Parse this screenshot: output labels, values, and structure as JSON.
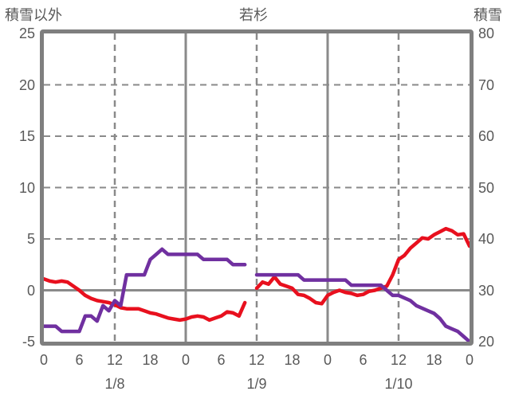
{
  "header": {
    "left_axis_title": "積雪以外",
    "chart_title": "若杉",
    "right_axis_title": "積雪"
  },
  "colors": {
    "axis_gray": "#7f7f7f",
    "grid_gray": "#8a8a8a",
    "text_gray": "#595959",
    "red_series": "#e8101e",
    "purple_series": "#7030a0"
  },
  "chart_data": {
    "type": "line",
    "title": "若杉",
    "x_axis": {
      "unit": "hour (0:00 1/8 — 0:00 1/11)",
      "min_hour": 0,
      "max_hour": 72,
      "tick_hours": [
        0,
        6,
        12,
        18,
        24,
        30,
        36,
        42,
        48,
        54,
        60,
        66,
        72
      ],
      "tick_labels": [
        "0",
        "6",
        "12",
        "18",
        "0",
        "6",
        "12",
        "18",
        "0",
        "6",
        "12",
        "18",
        "0"
      ],
      "day_labels": [
        {
          "text": "1/8",
          "hour": 12
        },
        {
          "text": "1/9",
          "hour": 36
        },
        {
          "text": "1/10",
          "hour": 60
        }
      ]
    },
    "left_axis": {
      "title": "積雪以外",
      "min": -5,
      "max": 25,
      "ticks": [
        "25",
        "20",
        "15",
        "10",
        "5",
        "0",
        "-5"
      ],
      "tick_values": [
        25,
        20,
        15,
        10,
        5,
        0,
        -5
      ]
    },
    "right_axis": {
      "title": "積雪",
      "min": 20,
      "max": 80,
      "ticks": [
        "80",
        "70",
        "60",
        "50",
        "40",
        "30",
        "20"
      ],
      "tick_values": [
        80,
        70,
        60,
        50,
        40,
        30,
        20
      ]
    },
    "gridlines": {
      "horizontal_dashed_left_values": [
        20,
        15,
        10,
        5
      ],
      "horizontal_solid_left_values": [
        0
      ],
      "vertical_dashed_hours": [
        12,
        36,
        60
      ],
      "vertical_solid_hours": [
        24,
        48
      ]
    },
    "series": [
      {
        "name": "sekisetsu-igai-red-line",
        "label": "積雪以外",
        "axis": "left",
        "color": "#e8101e",
        "start_hour": 0,
        "step_hours": 1,
        "values": [
          1.1,
          0.9,
          0.8,
          0.9,
          0.8,
          0.4,
          0.0,
          -0.5,
          -0.8,
          -1.0,
          -1.1,
          -1.2,
          -1.4,
          -1.7,
          -1.8,
          -1.8,
          -1.8,
          -2.0,
          -2.2,
          -2.3,
          -2.5,
          -2.7,
          -2.8,
          -2.9,
          -2.8,
          -2.6,
          -2.5,
          -2.6,
          -2.9,
          -2.7,
          -2.5,
          -2.1,
          -2.2,
          -2.5,
          -1.2,
          null,
          0.2,
          0.8,
          0.6,
          1.3,
          0.6,
          0.4,
          0.2,
          -0.4,
          -0.5,
          -0.8,
          -1.2,
          -1.3,
          -0.5,
          -0.2,
          0.0,
          -0.2,
          -0.3,
          -0.5,
          -0.4,
          -0.1,
          0.0,
          0.2,
          0.4,
          1.5,
          3.0,
          3.4,
          4.1,
          4.6,
          5.1,
          5.0,
          5.4,
          5.7,
          6.0,
          5.8,
          5.4,
          5.5,
          4.3
        ]
      },
      {
        "name": "sekisetsu-purple-line",
        "label": "積雪",
        "axis": "right",
        "color": "#7030a0",
        "start_hour": 0,
        "step_hours": 1,
        "values": [
          23,
          23,
          23,
          22,
          22,
          22,
          22,
          25,
          25,
          24,
          27,
          26,
          28,
          27,
          33,
          33,
          33,
          33,
          36,
          37,
          38,
          37,
          37,
          37,
          37,
          37,
          37,
          36,
          36,
          36,
          36,
          36,
          35,
          35,
          35,
          null,
          33,
          33,
          33,
          33,
          33,
          33,
          33,
          33,
          32,
          32,
          32,
          32,
          32,
          32,
          32,
          32,
          31,
          31,
          31,
          31,
          31,
          31,
          30,
          29,
          29,
          28.5,
          28,
          27,
          26.5,
          26,
          25.5,
          24.5,
          23,
          22.5,
          22,
          21,
          20
        ]
      }
    ]
  }
}
